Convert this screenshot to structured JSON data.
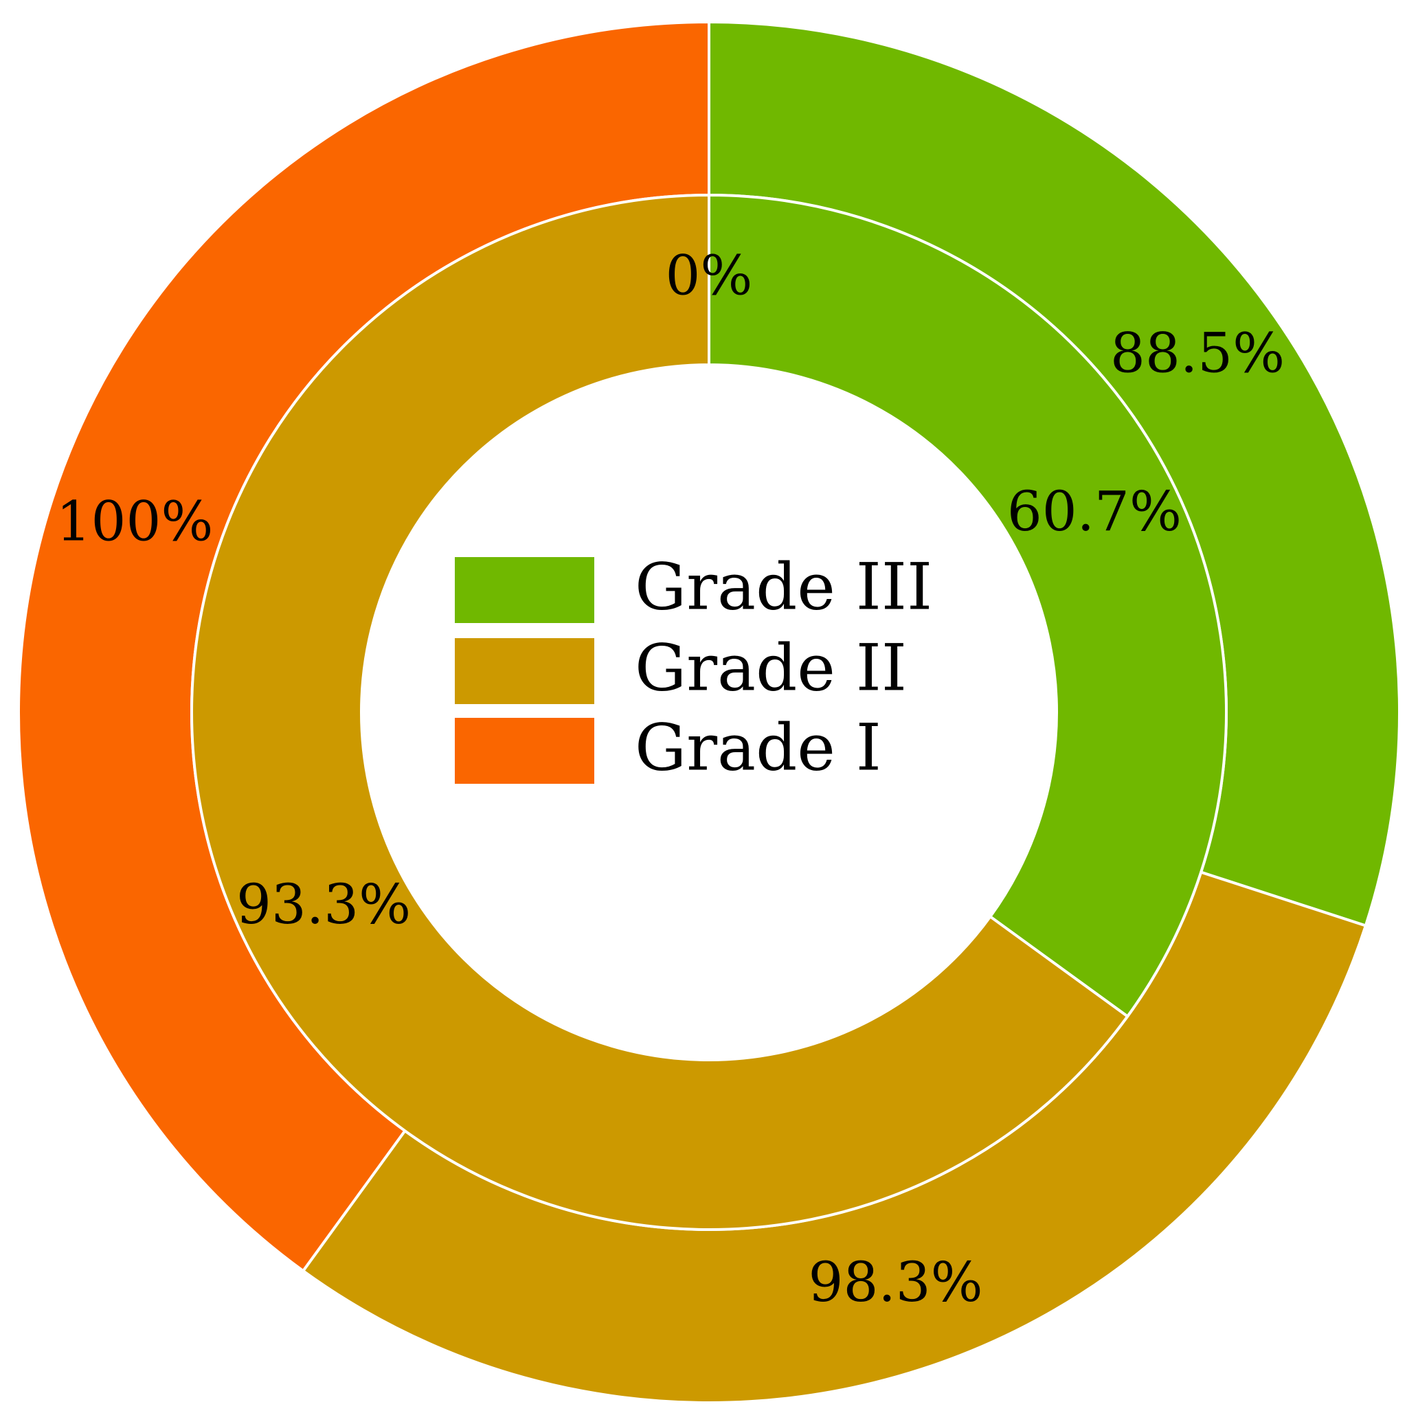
{
  "chart_data": {
    "type": "pie",
    "variant": "nested-donut",
    "legend": {
      "placement": "center",
      "entries": [
        {
          "name": "Grade III",
          "color": "#70b800"
        },
        {
          "name": "Grade II",
          "color": "#cc9900"
        },
        {
          "name": "Grade I",
          "color": "#fa6600"
        }
      ]
    },
    "rings": [
      {
        "ring": "outer",
        "slices": [
          {
            "series": "Grade III",
            "share": 0.3,
            "label": "88.5%"
          },
          {
            "series": "Grade II",
            "share": 0.3,
            "label": "98.3%"
          },
          {
            "series": "Grade I",
            "share": 0.4,
            "label": "100%"
          }
        ]
      },
      {
        "ring": "inner",
        "slices": [
          {
            "series": "Grade III",
            "share": 0.35,
            "label": "60.7%"
          },
          {
            "series": "Grade II",
            "share": 0.65,
            "label": "93.3%"
          },
          {
            "series": "Grade I",
            "share": 0.0,
            "label": "0%"
          }
        ]
      }
    ]
  }
}
